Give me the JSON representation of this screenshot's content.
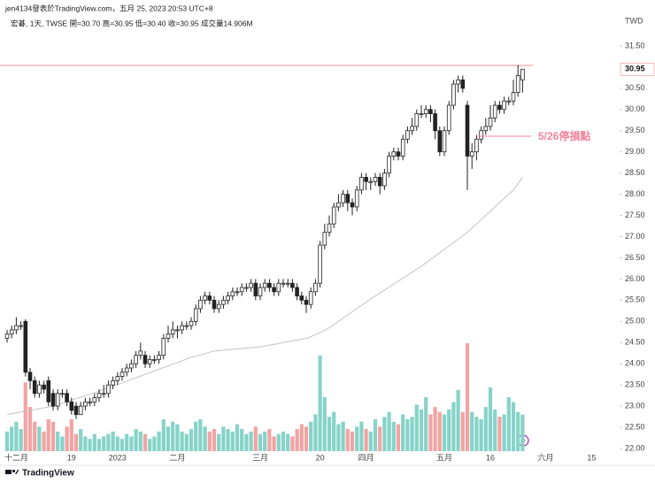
{
  "header": {
    "line1": "jen4134發表於TradingView.com，五月 25, 2023 20:53 UTC+8",
    "line2": "宏碁, 1天, TWSE 開=30.70 高=30.95 低=30.40 收=30.95 成交量14.906M"
  },
  "footer": "TradingView",
  "chart_data": {
    "type": "candlestick",
    "currency": "TWD",
    "ylim": [
      21.75,
      32.25
    ],
    "yticks": [
      {
        "value": 22,
        "label": "22.00"
      },
      {
        "value": 22.5,
        "label": "22.50"
      },
      {
        "value": 23,
        "label": "23.00"
      },
      {
        "value": 23.5,
        "label": "23.50"
      },
      {
        "value": 24,
        "label": "24.00"
      },
      {
        "value": 24.5,
        "label": "24.50"
      },
      {
        "value": 25,
        "label": "25.00"
      },
      {
        "value": 25.5,
        "label": "25.50"
      },
      {
        "value": 26,
        "label": "26.00"
      },
      {
        "value": 26.5,
        "label": "26.50"
      },
      {
        "value": 27,
        "label": "27.00"
      },
      {
        "value": 27.5,
        "label": "27.50"
      },
      {
        "value": 28,
        "label": "28.00"
      },
      {
        "value": 28.5,
        "label": "28.50"
      },
      {
        "value": 29,
        "label": "29.00"
      },
      {
        "value": 29.5,
        "label": "29.50"
      },
      {
        "value": 30,
        "label": "30.00"
      },
      {
        "value": 30.5,
        "label": "30.50"
      },
      {
        "value": 31.5,
        "label": "31.50"
      }
    ],
    "up_color": "#ffffff",
    "down_color": "#222222",
    "wick_color": "#222222",
    "volume_up_color": "#86d3c8",
    "volume_down_color": "#f2a3a3",
    "ma_color": "#c4c4c4",
    "categories": [
      null,
      null,
      "十二月",
      null,
      null,
      null,
      null,
      null,
      null,
      null,
      null,
      null,
      null,
      null,
      "19",
      null,
      null,
      null,
      null,
      null,
      null,
      null,
      null,
      null,
      "2023",
      null,
      null,
      null,
      null,
      null,
      null,
      null,
      null,
      null,
      null,
      null,
      null,
      "二月",
      null,
      null,
      null,
      null,
      null,
      null,
      null,
      null,
      null,
      null,
      null,
      null,
      null,
      null,
      null,
      null,
      null,
      "三月",
      null,
      null,
      null,
      null,
      null,
      null,
      null,
      null,
      null,
      null,
      null,
      null,
      "20",
      null,
      null,
      null,
      null,
      null,
      null,
      null,
      null,
      null,
      "四月",
      null,
      null,
      null,
      null,
      null,
      null,
      null,
      null,
      null,
      null,
      null,
      null,
      null,
      null,
      null,
      null,
      "五月",
      null,
      null,
      null,
      null,
      null,
      null,
      null,
      null,
      null,
      "16",
      null,
      null,
      null,
      null,
      null,
      null,
      null,
      null,
      null,
      null,
      null,
      "六月",
      null,
      null,
      null,
      null,
      null,
      null,
      null,
      null,
      null,
      "15",
      null,
      null,
      null,
      null,
      null,
      null
    ],
    "open": [
      24.6,
      24.7,
      24.8,
      24.9,
      25.0,
      23.8,
      23.6,
      23.3,
      23.5,
      23.6,
      23.3,
      23.0,
      23.3,
      23.3,
      23.1,
      23.0,
      22.8,
      23.0,
      23.1,
      23.1,
      23.2,
      23.3,
      23.3,
      23.5,
      23.6,
      23.7,
      23.8,
      23.9,
      24.0,
      24.2,
      24.2,
      24.0,
      24.1,
      24.1,
      24.2,
      24.6,
      24.7,
      24.8,
      24.8,
      24.9,
      24.9,
      25.0,
      25.3,
      25.5,
      25.6,
      25.5,
      25.3,
      25.4,
      25.5,
      25.6,
      25.7,
      25.7,
      25.8,
      25.8,
      25.9,
      25.6,
      25.8,
      25.9,
      25.8,
      25.7,
      25.9,
      25.9,
      25.9,
      25.8,
      25.6,
      25.5,
      25.4,
      25.7,
      25.9,
      26.8,
      27.1,
      27.3,
      27.7,
      27.8,
      28.0,
      27.8,
      27.7,
      28.1,
      28.4,
      28.3,
      28.3,
      28.4,
      28.2,
      28.5,
      28.9,
      29.0,
      28.9,
      29.3,
      29.5,
      29.6,
      29.9,
      29.9,
      30.0,
      29.9,
      29.5,
      29.0,
      29.5,
      30.1,
      30.6,
      30.7,
      30.1,
      28.9,
      29.0,
      29.3,
      29.5,
      29.6,
      29.8,
      30.1,
      30.0,
      30.2,
      30.2,
      30.4,
      30.7,
      null,
      null,
      null,
      null,
      null,
      null,
      null,
      null,
      null,
      null,
      null,
      null,
      null,
      null,
      null,
      null,
      null,
      null,
      null,
      null,
      null
    ],
    "high": [
      24.8,
      24.9,
      25.1,
      25.0,
      25.05,
      23.9,
      23.7,
      23.6,
      23.6,
      23.7,
      23.4,
      23.4,
      23.4,
      23.4,
      23.2,
      23.1,
      23.1,
      23.2,
      23.2,
      23.3,
      23.4,
      23.5,
      23.6,
      23.7,
      23.8,
      23.9,
      24.0,
      24.1,
      24.3,
      24.5,
      24.3,
      24.2,
      24.2,
      24.3,
      24.7,
      24.9,
      25.0,
      24.9,
      25.0,
      25.0,
      25.1,
      25.4,
      25.6,
      25.7,
      25.7,
      25.6,
      25.5,
      25.6,
      25.7,
      25.8,
      25.8,
      25.9,
      25.9,
      26.0,
      26.0,
      25.9,
      26.0,
      26.0,
      25.9,
      26.0,
      26.0,
      26.0,
      26.0,
      25.9,
      25.7,
      25.6,
      25.8,
      26.0,
      26.9,
      27.3,
      27.5,
      27.8,
      28.0,
      28.1,
      28.1,
      27.9,
      28.2,
      28.5,
      28.5,
      28.4,
      28.5,
      28.5,
      28.6,
      29.0,
      29.1,
      29.1,
      29.4,
      29.6,
      29.8,
      30.0,
      30.1,
      30.1,
      30.1,
      30.0,
      29.6,
      29.6,
      30.2,
      30.7,
      30.8,
      30.8,
      30.2,
      29.2,
      29.4,
      29.6,
      29.8,
      30.1,
      30.2,
      30.2,
      30.3,
      30.3,
      30.7,
      31.05,
      30.95,
      null,
      null,
      null,
      null,
      null,
      null,
      null,
      null,
      null,
      null,
      null,
      null,
      null,
      null,
      null,
      null,
      null,
      null,
      null,
      null,
      null
    ],
    "low": [
      24.5,
      24.6,
      24.7,
      24.8,
      23.7,
      23.4,
      23.2,
      23.2,
      23.3,
      23.0,
      22.9,
      22.9,
      23.2,
      23.0,
      22.8,
      22.7,
      22.8,
      22.9,
      23.0,
      23.0,
      23.1,
      23.2,
      23.2,
      23.4,
      23.5,
      23.6,
      23.7,
      23.8,
      23.9,
      24.1,
      23.9,
      23.9,
      24.0,
      24.0,
      24.1,
      24.5,
      24.6,
      24.6,
      24.7,
      24.8,
      24.8,
      24.9,
      25.2,
      25.4,
      25.4,
      25.2,
      25.2,
      25.3,
      25.4,
      25.5,
      25.6,
      25.6,
      25.7,
      25.7,
      25.5,
      25.5,
      25.7,
      25.7,
      25.6,
      25.6,
      25.8,
      25.8,
      25.7,
      25.5,
      25.4,
      25.2,
      25.3,
      25.6,
      25.8,
      26.7,
      27.0,
      27.2,
      27.6,
      27.7,
      27.6,
      27.5,
      27.6,
      28.0,
      28.1,
      28.1,
      28.2,
      28.0,
      28.1,
      28.4,
      28.8,
      28.8,
      28.8,
      29.2,
      29.4,
      29.5,
      29.8,
      29.8,
      29.7,
      29.3,
      28.9,
      28.9,
      29.4,
      30.0,
      30.4,
      30.4,
      28.1,
      28.6,
      28.8,
      29.2,
      29.4,
      29.5,
      29.7,
      29.9,
      29.9,
      30.1,
      30.1,
      30.3,
      30.4,
      null,
      null,
      null,
      null,
      null,
      null,
      null,
      null,
      null,
      null,
      null,
      null,
      null,
      null,
      null,
      null,
      null,
      null,
      null,
      null,
      null
    ],
    "close": [
      24.7,
      24.8,
      24.9,
      24.9,
      23.8,
      23.6,
      23.3,
      23.5,
      23.4,
      23.1,
      23.0,
      23.3,
      23.3,
      23.1,
      22.9,
      22.8,
      23.0,
      23.1,
      23.1,
      23.2,
      23.3,
      23.3,
      23.5,
      23.6,
      23.7,
      23.8,
      23.9,
      24.0,
      24.2,
      24.3,
      24.0,
      24.1,
      24.1,
      24.2,
      24.6,
      24.7,
      24.8,
      24.8,
      24.9,
      24.9,
      25.0,
      25.3,
      25.5,
      25.6,
      25.5,
      25.3,
      25.4,
      25.5,
      25.6,
      25.7,
      25.7,
      25.8,
      25.8,
      25.9,
      25.6,
      25.8,
      25.9,
      25.8,
      25.7,
      25.9,
      25.9,
      25.9,
      25.8,
      25.6,
      25.5,
      25.4,
      25.7,
      25.9,
      26.8,
      27.1,
      27.3,
      27.7,
      27.8,
      28.0,
      27.8,
      27.7,
      28.1,
      28.4,
      28.3,
      28.3,
      28.4,
      28.2,
      28.5,
      28.9,
      29.0,
      28.9,
      29.3,
      29.5,
      29.6,
      29.9,
      29.9,
      30.0,
      29.9,
      29.5,
      29.0,
      29.5,
      30.1,
      30.6,
      30.7,
      30.5,
      28.9,
      29.0,
      29.3,
      29.5,
      29.6,
      29.8,
      30.1,
      30.0,
      30.2,
      30.2,
      30.4,
      30.8,
      30.95,
      null,
      null,
      null,
      null,
      null,
      null,
      null,
      null,
      null,
      null,
      null,
      null,
      null,
      null,
      null,
      null,
      null,
      null,
      null,
      null,
      null
    ],
    "volume": [
      8,
      10,
      12,
      9,
      28,
      18,
      12,
      10,
      8,
      13,
      12,
      8,
      6,
      10,
      13,
      7,
      9,
      6,
      5,
      7,
      5,
      6,
      7,
      8,
      6,
      5,
      7,
      6,
      9,
      8,
      7,
      5,
      6,
      8,
      13,
      10,
      12,
      11,
      8,
      7,
      9,
      12,
      13,
      10,
      8,
      9,
      7,
      10,
      9,
      8,
      11,
      9,
      7,
      8,
      10,
      7,
      8,
      9,
      6,
      7,
      8,
      7,
      6,
      9,
      11,
      10,
      12,
      15,
      39,
      22,
      14,
      16,
      11,
      12,
      9,
      8,
      10,
      12,
      9,
      8,
      13,
      10,
      14,
      16,
      12,
      11,
      15,
      13,
      14,
      19,
      17,
      22,
      15,
      18,
      16,
      15,
      17,
      20,
      25,
      16,
      44,
      16,
      14,
      13,
      18,
      26,
      17,
      14,
      15,
      22,
      20,
      16,
      14.906,
      null,
      null,
      null,
      null,
      null,
      null,
      null,
      null,
      null,
      null,
      null,
      null,
      null,
      null,
      null,
      null,
      null,
      null,
      null,
      null,
      null
    ],
    "ma": [
      22.8,
      22.82,
      22.84,
      22.86,
      22.88,
      22.9,
      22.92,
      22.94,
      22.96,
      22.98,
      23.0,
      23.04,
      23.07,
      23.11,
      23.14,
      23.18,
      23.21,
      23.25,
      23.28,
      23.32,
      23.35,
      23.39,
      23.43,
      23.47,
      23.51,
      23.55,
      23.59,
      23.63,
      23.67,
      23.71,
      23.75,
      23.79,
      23.83,
      23.87,
      23.91,
      23.95,
      23.99,
      24.03,
      24.07,
      24.11,
      24.15,
      24.18,
      24.21,
      24.24,
      24.27,
      24.3,
      24.31,
      24.32,
      24.33,
      24.34,
      24.35,
      24.36,
      24.37,
      24.38,
      24.39,
      24.4,
      24.42,
      24.44,
      24.46,
      24.48,
      24.5,
      24.52,
      24.54,
      24.56,
      24.58,
      24.6,
      24.64,
      24.69,
      24.74,
      24.79,
      24.85,
      24.93,
      25.0,
      25.08,
      25.15,
      25.23,
      25.3,
      25.38,
      25.45,
      25.53,
      25.6,
      25.67,
      25.74,
      25.81,
      25.88,
      25.95,
      26.02,
      26.09,
      26.16,
      26.23,
      26.3,
      26.38,
      26.46,
      26.54,
      26.62,
      26.7,
      26.78,
      26.86,
      26.94,
      27.02,
      27.1,
      27.2,
      27.3,
      27.4,
      27.5,
      27.6,
      27.7,
      27.8,
      27.9,
      28.0,
      28.1,
      28.25,
      28.4,
      null,
      null,
      null,
      null,
      null,
      null,
      null,
      null,
      null,
      null,
      null,
      null,
      null,
      null,
      null,
      null,
      null,
      null,
      null,
      null,
      null
    ],
    "hline": {
      "value": 31.04,
      "color": "#f08c8c"
    },
    "annotation": {
      "text": "5/26停損點",
      "value": 29.37,
      "color": "#f0849a"
    }
  }
}
